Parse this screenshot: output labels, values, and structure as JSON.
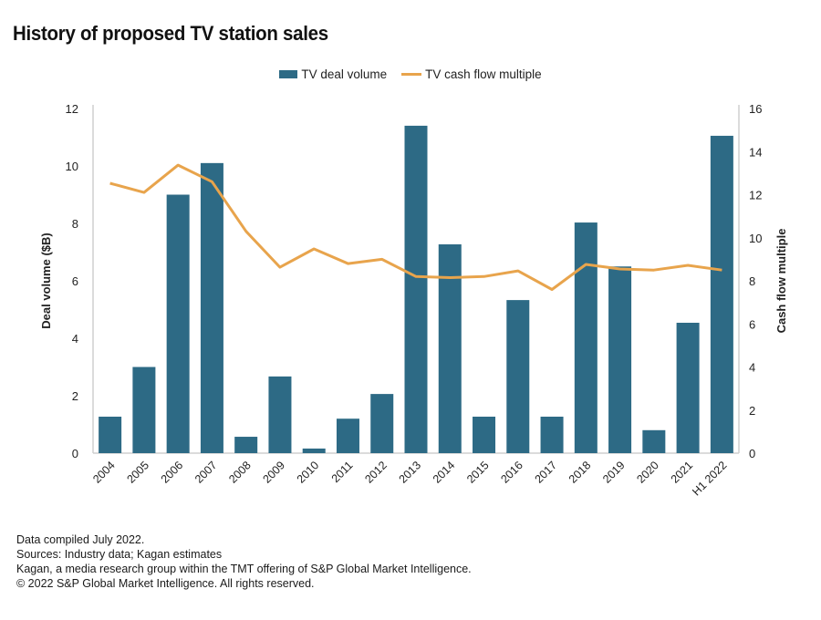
{
  "chart_data": {
    "type": "bar",
    "title": "History of proposed TV station sales",
    "categories": [
      "2004",
      "2005",
      "2006",
      "2007",
      "2008",
      "2009",
      "2010",
      "2011",
      "2012",
      "2013",
      "2014",
      "2015",
      "2016",
      "2017",
      "2018",
      "2019",
      "2020",
      "2021",
      "H1 2022"
    ],
    "series": [
      {
        "name": "TV deal volume",
        "type": "bar",
        "axis": "left",
        "color": "#2d6a85",
        "values": [
          1.27,
          3.0,
          9.0,
          10.1,
          0.57,
          2.67,
          0.16,
          1.2,
          2.06,
          11.4,
          7.27,
          1.27,
          5.33,
          1.27,
          8.03,
          6.5,
          0.8,
          4.54,
          11.05
        ]
      },
      {
        "name": "TV cash flow multiple",
        "type": "line",
        "axis": "right",
        "color": "#e8a44c",
        "values": [
          12.53,
          12.1,
          13.37,
          12.6,
          10.3,
          8.63,
          9.48,
          8.8,
          9.0,
          8.2,
          8.15,
          8.2,
          8.46,
          7.6,
          8.76,
          8.55,
          8.5,
          8.72,
          8.5
        ]
      }
    ],
    "ylabel": "Deal volume ($B)",
    "ylim": [
      0,
      12
    ],
    "yticks": [
      "0",
      "2",
      "4",
      "6",
      "8",
      "10",
      "12"
    ],
    "y2label": "Cash flow multiple",
    "y2lim": [
      0,
      16
    ],
    "y2ticks": [
      "0",
      "2",
      "4",
      "6",
      "8",
      "10",
      "12",
      "14",
      "16"
    ],
    "legend_position": "top-center",
    "grid": false
  },
  "footer": {
    "lines": [
      "Data compiled July 2022.",
      "Sources: Industry data; Kagan estimates",
      "Kagan, a media research group within the TMT offering of S&P Global Market Intelligence.",
      "© 2022 S&P Global Market Intelligence. All rights reserved."
    ]
  }
}
